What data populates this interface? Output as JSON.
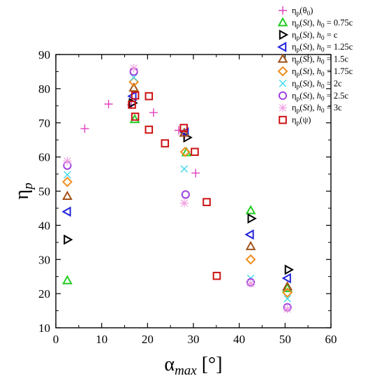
{
  "chart_data": {
    "type": "scatter",
    "title": "",
    "xlabel": {
      "main": "α",
      "sub": "max",
      "unit": " [°]"
    },
    "ylabel": {
      "main": "η",
      "sub": "p"
    },
    "xlim": [
      0,
      60
    ],
    "ylim": [
      10,
      90
    ],
    "xticks": [
      "0",
      "10",
      "20",
      "30",
      "40",
      "50",
      "60"
    ],
    "yticks": [
      "10",
      "20",
      "30",
      "40",
      "50",
      "60",
      "70",
      "80",
      "90"
    ],
    "grid": false,
    "legend_position": "top-right",
    "series": [
      {
        "name": "ηp(θ0)",
        "legend": {
          "prefix": "η",
          "sub": "p",
          "rest": "(θ",
          "rest_sub": "0",
          "tail": ")"
        },
        "marker": "plus",
        "color": "#e040c0",
        "points": [
          [
            6.3,
            68.3
          ],
          [
            11.5,
            75.5
          ],
          [
            16.5,
            75.3
          ],
          [
            21.3,
            73.0
          ],
          [
            26.8,
            67.8
          ],
          [
            28.1,
            66.5
          ],
          [
            30.5,
            55.3
          ]
        ]
      },
      {
        "name": "ηp(St), h0 = 0.75c",
        "legend": {
          "prefix": "η",
          "sub": "p",
          "rest": "(St), h",
          "rest_sub": "0",
          "tail": " = 0.75c"
        },
        "marker": "triangle-up",
        "color": "#22cc22",
        "points": [
          [
            2.5,
            23.8
          ],
          [
            17.2,
            71.0
          ],
          [
            28.5,
            61.3
          ],
          [
            42.5,
            44.3
          ],
          [
            50.5,
            21.5
          ]
        ]
      },
      {
        "name": "ηp(St), h0 = c",
        "legend": {
          "prefix": "η",
          "sub": "p",
          "rest": "(St), h",
          "rest_sub": "0",
          "tail": " = c"
        },
        "marker": "triangle-right",
        "color": "#000000",
        "points": [
          [
            2.5,
            35.8
          ],
          [
            16.7,
            75.8
          ],
          [
            28.6,
            65.7
          ],
          [
            42.6,
            42.0
          ],
          [
            50.7,
            27.0
          ]
        ]
      },
      {
        "name": "ηp(St), h0 = 1.25c",
        "legend": {
          "prefix": "η",
          "sub": "p",
          "rest": "(St), h",
          "rest_sub": "0",
          "tail": " = 1.25c"
        },
        "marker": "triangle-left",
        "color": "#2222dd",
        "points": [
          [
            2.5,
            44.0
          ],
          [
            16.8,
            77.8
          ],
          [
            28.2,
            67.2
          ],
          [
            42.4,
            37.3
          ],
          [
            50.5,
            24.5
          ]
        ]
      },
      {
        "name": "ηp(St), h0 = 1.5c",
        "legend": {
          "prefix": "η",
          "sub": "p",
          "rest": "(St), h",
          "rest_sub": "0",
          "tail": " = 1.5c"
        },
        "marker": "triangle-up",
        "color": "#a0521a",
        "points": [
          [
            2.5,
            48.5
          ],
          [
            17.0,
            80.2
          ],
          [
            28.0,
            67.0
          ],
          [
            42.5,
            33.8
          ],
          [
            50.5,
            22.0
          ]
        ]
      },
      {
        "name": "ηp(St), h0 = 1.75c",
        "legend": {
          "prefix": "η",
          "sub": "p",
          "rest": "(St), h",
          "rest_sub": "0",
          "tail": " = 1.75c"
        },
        "marker": "diamond",
        "color": "#f08c1e",
        "points": [
          [
            2.5,
            52.7
          ],
          [
            17.0,
            82.0
          ],
          [
            28.2,
            61.5
          ],
          [
            42.5,
            30.0
          ],
          [
            50.5,
            20.3
          ]
        ]
      },
      {
        "name": "ηp(St), h0 = 2c",
        "legend": {
          "prefix": "η",
          "sub": "p",
          "rest": "(St), h",
          "rest_sub": "0",
          "tail": " = 2c"
        },
        "marker": "cross",
        "color": "#40d8e8",
        "points": [
          [
            2.5,
            54.8
          ],
          [
            17.0,
            83.3
          ],
          [
            28.0,
            56.5
          ],
          [
            42.5,
            24.5
          ],
          [
            50.5,
            18.5
          ]
        ]
      },
      {
        "name": "ηp(St), h0 = 2.5c",
        "legend": {
          "prefix": "η",
          "sub": "p",
          "rest": "(St), h",
          "rest_sub": "0",
          "tail": " = 2.5c"
        },
        "marker": "circle",
        "color": "#a040e0",
        "points": [
          [
            2.5,
            57.5
          ],
          [
            17.0,
            85.0
          ],
          [
            28.3,
            49.0
          ],
          [
            42.5,
            23.3
          ],
          [
            50.5,
            16.0
          ]
        ]
      },
      {
        "name": "ηp(St), h0 = 3c",
        "legend": {
          "prefix": "η",
          "sub": "p",
          "rest": "(St), h",
          "rest_sub": "0",
          "tail": " = 3c"
        },
        "marker": "asterisk",
        "color": "#f0a0e0",
        "points": [
          [
            2.5,
            58.8
          ],
          [
            17.0,
            86.0
          ],
          [
            28.0,
            46.5
          ],
          [
            42.5,
            23.0
          ],
          [
            50.5,
            15.5
          ]
        ]
      },
      {
        "name": "ηp(ψ)",
        "legend": {
          "prefix": "η",
          "sub": "p",
          "rest": "(ψ)",
          "rest_sub": "",
          "tail": ""
        },
        "marker": "square",
        "color": "#cc1111",
        "points": [
          [
            16.6,
            75.3
          ],
          [
            17.3,
            78.0
          ],
          [
            17.3,
            71.8
          ],
          [
            20.3,
            77.8
          ],
          [
            20.3,
            68.0
          ],
          [
            23.8,
            64.0
          ],
          [
            27.9,
            68.5
          ],
          [
            30.3,
            61.5
          ],
          [
            32.9,
            46.8
          ],
          [
            35.1,
            25.2
          ]
        ]
      }
    ]
  }
}
